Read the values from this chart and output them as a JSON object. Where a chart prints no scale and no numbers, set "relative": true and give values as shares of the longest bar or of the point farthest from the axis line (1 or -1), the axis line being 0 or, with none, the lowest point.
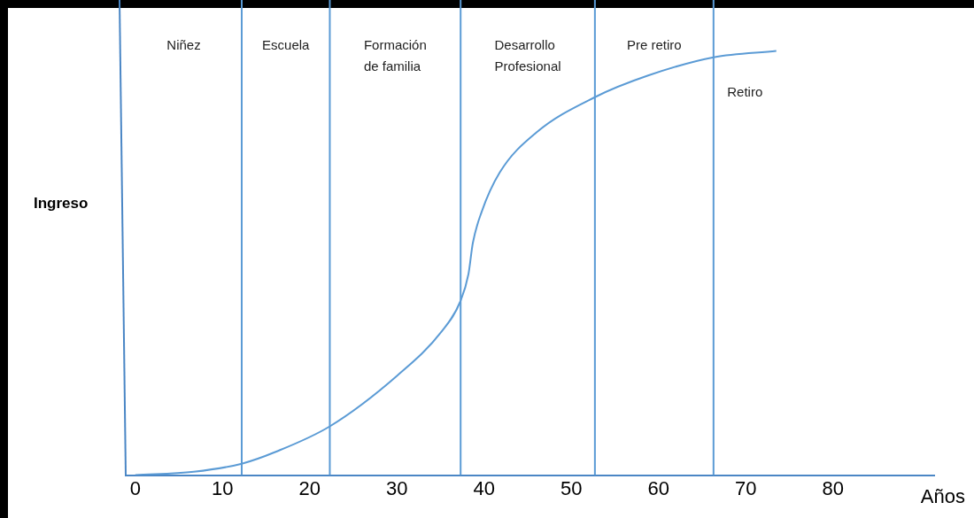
{
  "chart_data": {
    "type": "line",
    "relative": true,
    "ylabel": "Ingreso",
    "xlabel": "Años",
    "x": [
      0,
      6.7,
      12.2,
      16.1,
      22.3,
      30,
      35.1,
      37.3,
      38.2,
      38.7,
      39.7,
      41.8,
      46,
      52.7,
      58.8,
      66.3,
      73.5
    ],
    "series": [
      {
        "color": "#5b9bd5",
        "values": [
          0,
          0.008,
          0.027,
          0.055,
          0.115,
          0.234,
          0.338,
          0.411,
          0.474,
          0.547,
          0.62,
          0.714,
          0.808,
          0.891,
          0.942,
          0.985,
          1
        ]
      }
    ],
    "xlim": [
      -1.1,
      91.6
    ],
    "xticks": [
      0,
      10,
      20,
      30,
      40,
      50,
      60,
      70,
      80
    ],
    "ref_lines": [
      {
        "axis": "x",
        "value": 12.2,
        "color": "#5b9bd5"
      },
      {
        "axis": "x",
        "value": 22.3,
        "color": "#5b9bd5"
      },
      {
        "axis": "x",
        "value": 37.3,
        "color": "#5b9bd5"
      },
      {
        "axis": "x",
        "value": 52.7,
        "color": "#5b9bd5"
      },
      {
        "axis": "x",
        "value": 66.3,
        "color": "#5b9bd5"
      }
    ],
    "annotations": [
      "Niñez",
      "Escuela",
      "Formación de familia",
      "Desarrollo Profesional",
      "Pre retiro",
      "Retiro"
    ],
    "grid": false,
    "legend": false,
    "marker": "none",
    "line_style": "solid"
  }
}
